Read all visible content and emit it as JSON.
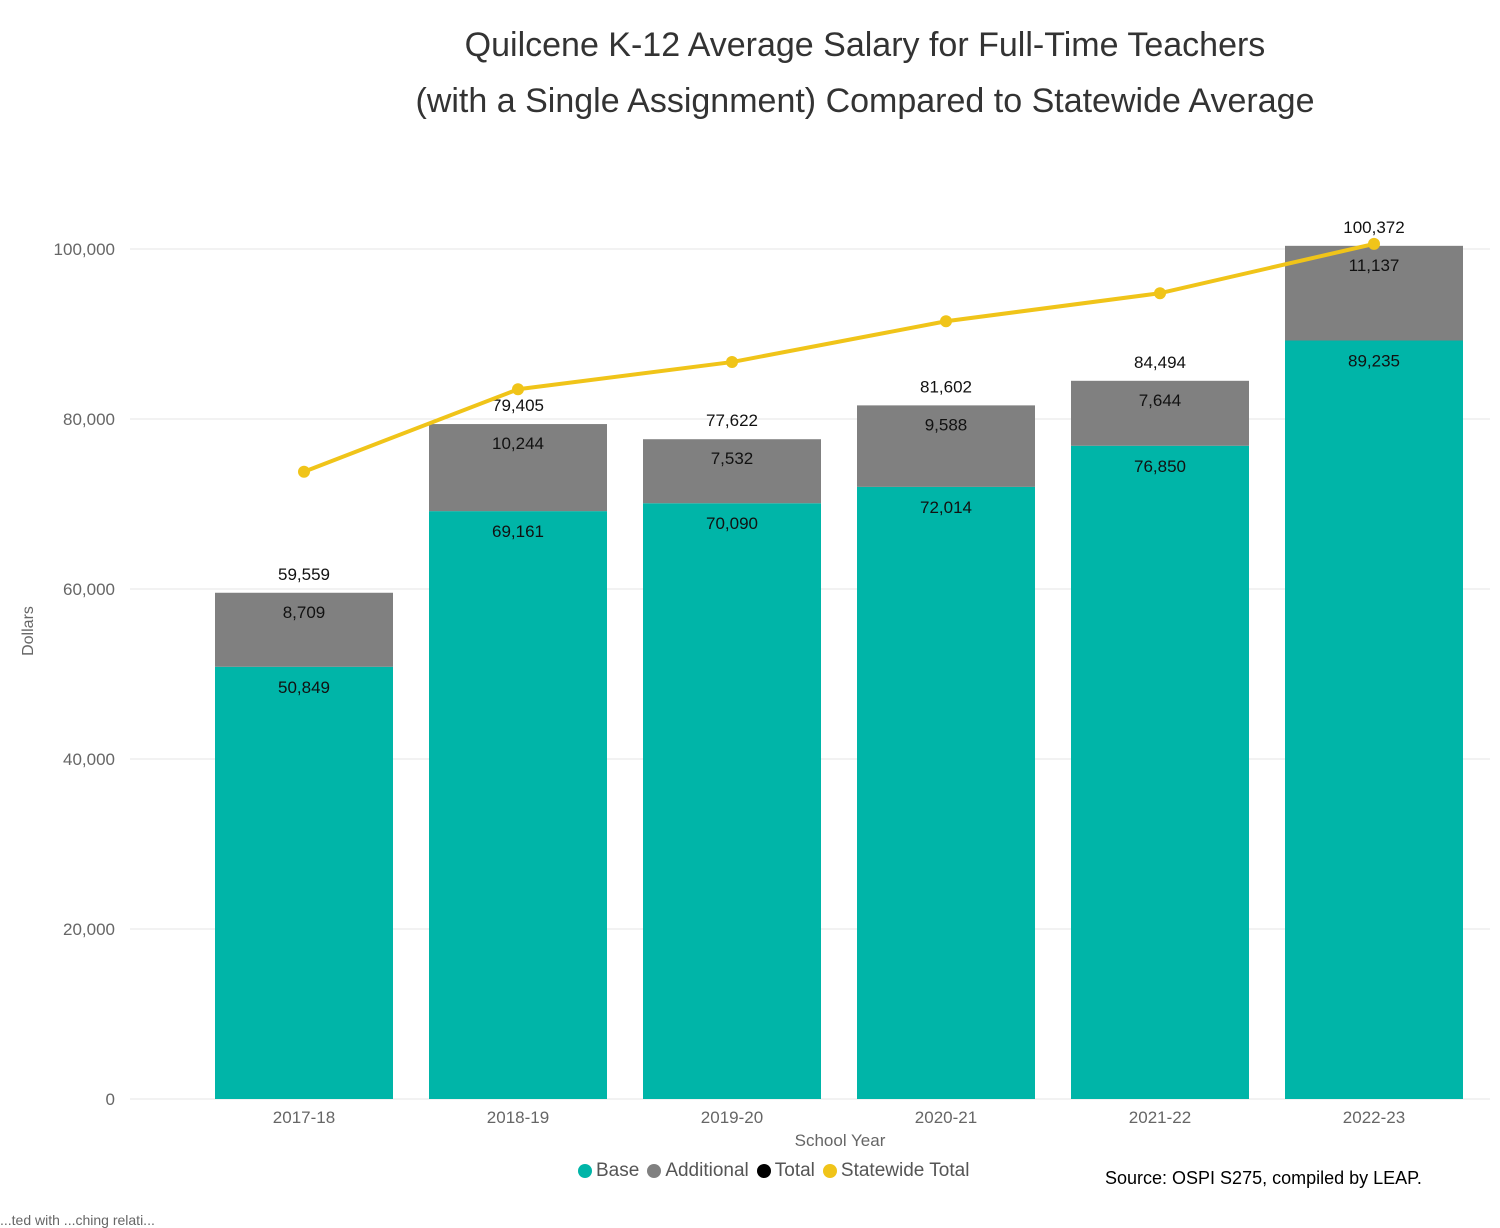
{
  "chart_title_line1": "Quilcene K-12 Average Salary for Full-Time Teachers",
  "chart_title_line2": "(with a Single Assignment) Compared to Statewide Average",
  "source": "Source: OSPI S275, compiled by LEAP.",
  "footer_note": "...ted with ...ching relati...",
  "colors": {
    "base": "#00b5a8",
    "additional": "#808080",
    "total": "#000000",
    "statewide": "#f0c419",
    "grid": "#e6e6e6",
    "axis_text": "#666666"
  },
  "legend": [
    {
      "key": "base",
      "label": "Base"
    },
    {
      "key": "additional",
      "label": "Additional"
    },
    {
      "key": "total",
      "label": "Total"
    },
    {
      "key": "statewide",
      "label": "Statewide Total"
    }
  ],
  "chart_data": {
    "type": "bar",
    "stacked": true,
    "xlabel": "School Year",
    "ylabel": "Dollars",
    "ylim": [
      0,
      100000
    ],
    "yticks": [
      0,
      20000,
      40000,
      60000,
      80000,
      100000
    ],
    "ytick_labels": [
      "0",
      "20,000",
      "40,000",
      "60,000",
      "80,000",
      "100,000"
    ],
    "grid": true,
    "legend_position": "bottom",
    "categories": [
      "2017-18",
      "2018-19",
      "2019-20",
      "2020-21",
      "2021-22",
      "2022-23"
    ],
    "series": [
      {
        "name": "Base",
        "values": [
          50849,
          69161,
          70090,
          72014,
          76850,
          89235
        ],
        "labels": [
          "50,849",
          "69,161",
          "70,090",
          "72,014",
          "76,850",
          "89,235"
        ]
      },
      {
        "name": "Additional",
        "values": [
          8709,
          10244,
          7532,
          9588,
          7644,
          11137
        ],
        "labels": [
          "8,709",
          "10,244",
          "7,532",
          "9,588",
          "7,644",
          "11,137"
        ]
      },
      {
        "name": "Total",
        "values": [
          59559,
          79405,
          77622,
          81602,
          84494,
          100372
        ],
        "labels": [
          "59,559",
          "79,405",
          "77,622",
          "81,602",
          "84,494",
          "100,372"
        ]
      },
      {
        "name": "Statewide Total",
        "type": "line",
        "values": [
          73800,
          83500,
          86700,
          91500,
          94800,
          100600
        ]
      }
    ]
  }
}
